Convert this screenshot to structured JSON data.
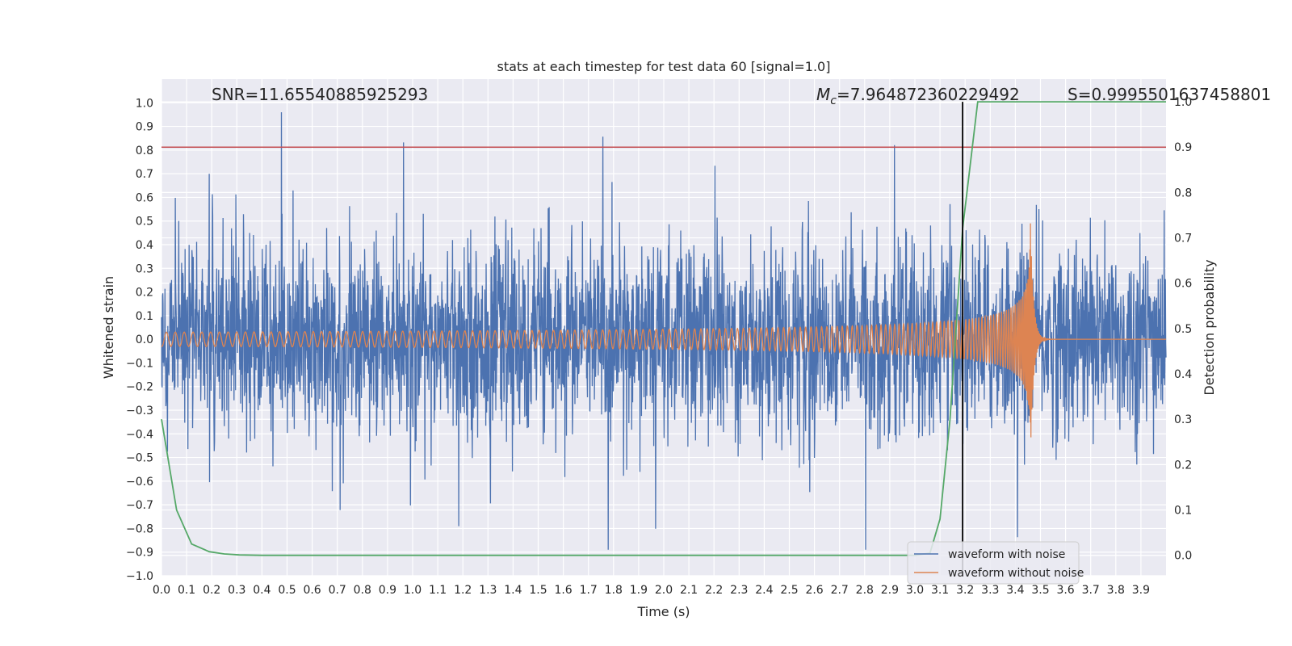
{
  "chart_data": {
    "type": "line",
    "title": "stats at each timestep for test data 60 [signal=1.0]",
    "xlabel": "Time (s)",
    "ylabel": "Whitened strain",
    "y2label": "Detection probability",
    "xlim": [
      0.0,
      4.0
    ],
    "ylim": [
      -1.0,
      1.1
    ],
    "y2lim": [
      -0.045,
      1.05
    ],
    "x_ticks": [
      "0.0",
      "0.1",
      "0.2",
      "0.3",
      "0.4",
      "0.5",
      "0.6",
      "0.7",
      "0.8",
      "0.9",
      "1.0",
      "1.1",
      "1.2",
      "1.3",
      "1.4",
      "1.5",
      "1.6",
      "1.7",
      "1.8",
      "1.9",
      "2.0",
      "2.1",
      "2.2",
      "2.3",
      "2.4",
      "2.5",
      "2.6",
      "2.7",
      "2.8",
      "2.9",
      "3.0",
      "3.1",
      "3.2",
      "3.3",
      "3.4",
      "3.5",
      "3.6",
      "3.7",
      "3.8",
      "3.9"
    ],
    "y_ticks": [
      "1.0",
      "0.9",
      "0.8",
      "0.7",
      "0.6",
      "0.5",
      "0.4",
      "0.3",
      "0.2",
      "0.1",
      "0.0",
      "−0.1",
      "−0.2",
      "−0.3",
      "−0.4",
      "−0.5",
      "−0.6",
      "−0.7",
      "−0.8",
      "−0.9",
      "−1.0"
    ],
    "y2_ticks": [
      "0.0",
      "0.1",
      "0.2",
      "0.3",
      "0.4",
      "0.5",
      "0.6",
      "0.7",
      "0.8",
      "0.9",
      "1.0"
    ],
    "annotations": {
      "snr": "SNR=11.65540885925293",
      "mc_symbol": "M",
      "mc_sub": "c",
      "mc_value": "=7.964872360229492",
      "s": "S=0.9995501637458801"
    },
    "series": [
      {
        "name": "waveform with noise",
        "color": "#4c72b0",
        "noise_std": 0.2,
        "peak_max": 0.96,
        "peak_min": -0.89
      },
      {
        "name": "waveform without noise",
        "color": "#dd8452",
        "t_merger": 3.46,
        "amp_start": 0.03,
        "amp_peak": 0.49
      },
      {
        "name": "detection probability",
        "color": "#55a868",
        "axis": "right",
        "x": [
          0.0,
          0.06,
          0.12,
          0.19,
          0.25,
          0.31,
          0.4,
          0.5,
          1.0,
          2.0,
          3.0,
          3.06,
          3.1,
          3.14,
          3.19,
          3.25,
          3.3,
          3.5,
          4.0
        ],
        "y": [
          0.3,
          0.1,
          0.025,
          0.008,
          0.003,
          0.001,
          0.0,
          0.0,
          0.0,
          0.0,
          0.0,
          0.005,
          0.08,
          0.3,
          0.72,
          1.0,
          1.0,
          1.0,
          1.0
        ]
      }
    ],
    "threshold": {
      "value": 0.9,
      "axis": "right",
      "color": "#c44e52"
    },
    "vline": {
      "x": 3.19,
      "color": "#000000"
    },
    "legend": {
      "position": "lower-right",
      "entries": [
        "waveform with noise",
        "waveform without noise"
      ]
    }
  }
}
